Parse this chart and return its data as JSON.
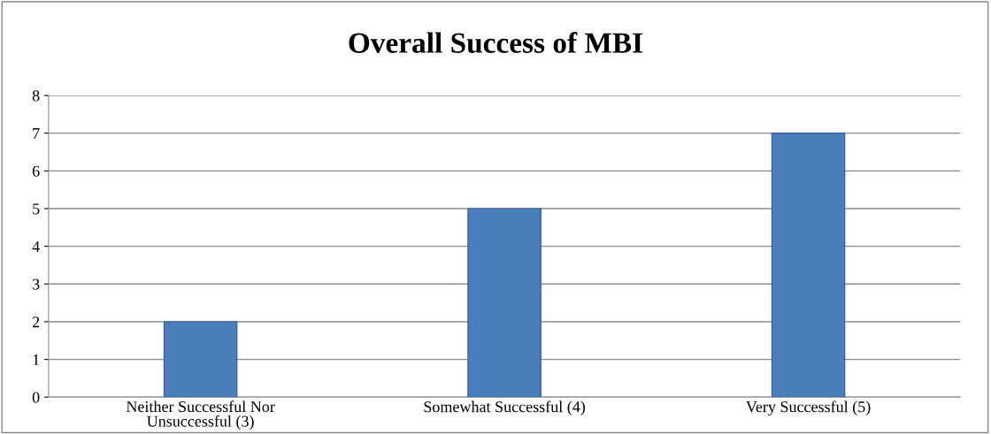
{
  "chart_data": {
    "type": "bar",
    "title": "Overall Success of MBI",
    "categories": [
      "Neither Successful Nor Unsuccessful (3)",
      "Somewhat Successful (4)",
      "Very Successful (5)"
    ],
    "values": [
      2,
      5,
      7
    ],
    "color": "#4a7ebb",
    "ylim": [
      0,
      8
    ],
    "yticks": [
      0,
      1,
      2,
      3,
      4,
      5,
      6,
      7,
      8
    ],
    "grid": "y",
    "legend": false
  }
}
